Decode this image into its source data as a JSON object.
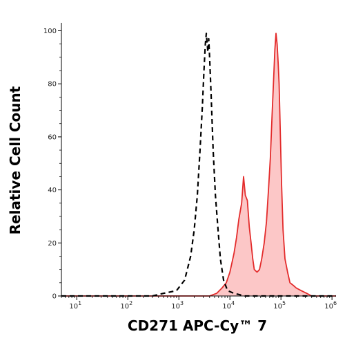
{
  "chart_data": {
    "type": "area",
    "title": "",
    "xlabel": "CD271 APC-Cy™ 7",
    "ylabel": "Relative Cell Count",
    "x_scale": "log",
    "xlim": [
      5,
      1200000
    ],
    "ylim": [
      0,
      103
    ],
    "grid": false,
    "x_ticks": [
      {
        "value": 10,
        "base": "10",
        "exp": "1"
      },
      {
        "value": 100,
        "base": "10",
        "exp": "2"
      },
      {
        "value": 1000,
        "base": "10",
        "exp": "3"
      },
      {
        "value": 10000,
        "base": "10",
        "exp": "4"
      },
      {
        "value": 100000,
        "base": "10",
        "exp": "5"
      },
      {
        "value": 1000000,
        "base": "10",
        "exp": "6"
      }
    ],
    "y_ticks": [
      0,
      20,
      40,
      60,
      80,
      100
    ],
    "series": [
      {
        "style": "dashed",
        "color": "#000000",
        "x": [
          5,
          300,
          500,
          900,
          1300,
          1700,
          2000,
          2300,
          2600,
          2900,
          3100,
          3300,
          3450,
          3550,
          3700,
          3850,
          4000,
          4300,
          4700,
          5200,
          5800,
          6500,
          7500,
          9000,
          12000,
          20000,
          1200000
        ],
        "y": [
          0,
          0,
          1,
          2,
          6,
          15,
          25,
          38,
          55,
          72,
          85,
          95,
          99,
          96,
          92,
          97,
          90,
          75,
          55,
          38,
          26,
          14,
          6,
          2,
          1,
          0,
          0
        ]
      },
      {
        "style": "filled",
        "color": "#e32b2b",
        "fill": "#fcc7c7",
        "x": [
          5,
          4000,
          5500,
          7000,
          8500,
          10000,
          12000,
          13500,
          15000,
          17000,
          18500,
          20000,
          22000,
          24000,
          26000,
          28000,
          30000,
          34000,
          38000,
          42000,
          47000,
          52000,
          57000,
          62000,
          67000,
          72000,
          76000,
          80000,
          84000,
          88000,
          92000,
          97000,
          103000,
          110000,
          120000,
          135000,
          150000,
          175000,
          200000,
          250000,
          320000,
          400000,
          500000,
          700000,
          1200000
        ],
        "y": [
          0,
          0,
          1,
          3,
          5,
          9,
          16,
          22,
          29,
          35,
          45,
          38,
          36,
          26,
          20,
          14,
          10,
          9,
          10,
          14,
          20,
          28,
          40,
          52,
          68,
          82,
          93,
          99,
          95,
          88,
          80,
          62,
          42,
          25,
          14,
          9,
          5,
          4,
          3,
          2,
          1,
          0,
          0,
          0,
          0
        ]
      }
    ]
  }
}
